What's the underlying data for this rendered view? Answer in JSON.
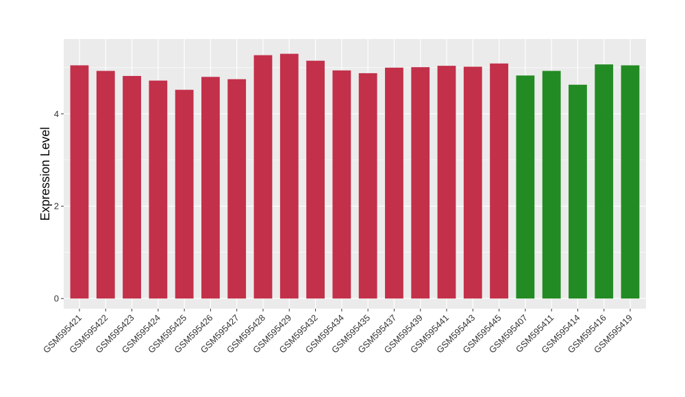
{
  "chart_data": {
    "type": "bar",
    "title": "",
    "xlabel": "",
    "ylabel": "Expression Level",
    "ylim": [
      -0.22,
      5.62
    ],
    "yticks": [
      0,
      2,
      4
    ],
    "grid": true,
    "legend": "none",
    "colors": {
      "group_a": "#C3304A",
      "group_b": "#238B23",
      "panel": "#EBEBEB",
      "grid": "#FFFFFF"
    },
    "categories": [
      "GSM595421",
      "GSM595422",
      "GSM595423",
      "GSM595424",
      "GSM595425",
      "GSM595426",
      "GSM595427",
      "GSM595428",
      "GSM595429",
      "GSM595432",
      "GSM595434",
      "GSM595435",
      "GSM595437",
      "GSM595439",
      "GSM595441",
      "GSM595443",
      "GSM595445",
      "GSM595407",
      "GSM595411",
      "GSM595414",
      "GSM595416",
      "GSM595419"
    ],
    "values": [
      5.05,
      4.93,
      4.82,
      4.72,
      4.52,
      4.8,
      4.75,
      5.27,
      5.3,
      5.15,
      4.94,
      4.88,
      5.0,
      5.01,
      5.04,
      5.02,
      5.09,
      4.83,
      4.93,
      4.63,
      5.07,
      5.05
    ],
    "groups": [
      "a",
      "a",
      "a",
      "a",
      "a",
      "a",
      "a",
      "a",
      "a",
      "a",
      "a",
      "a",
      "a",
      "a",
      "a",
      "a",
      "a",
      "b",
      "b",
      "b",
      "b",
      "b"
    ]
  }
}
